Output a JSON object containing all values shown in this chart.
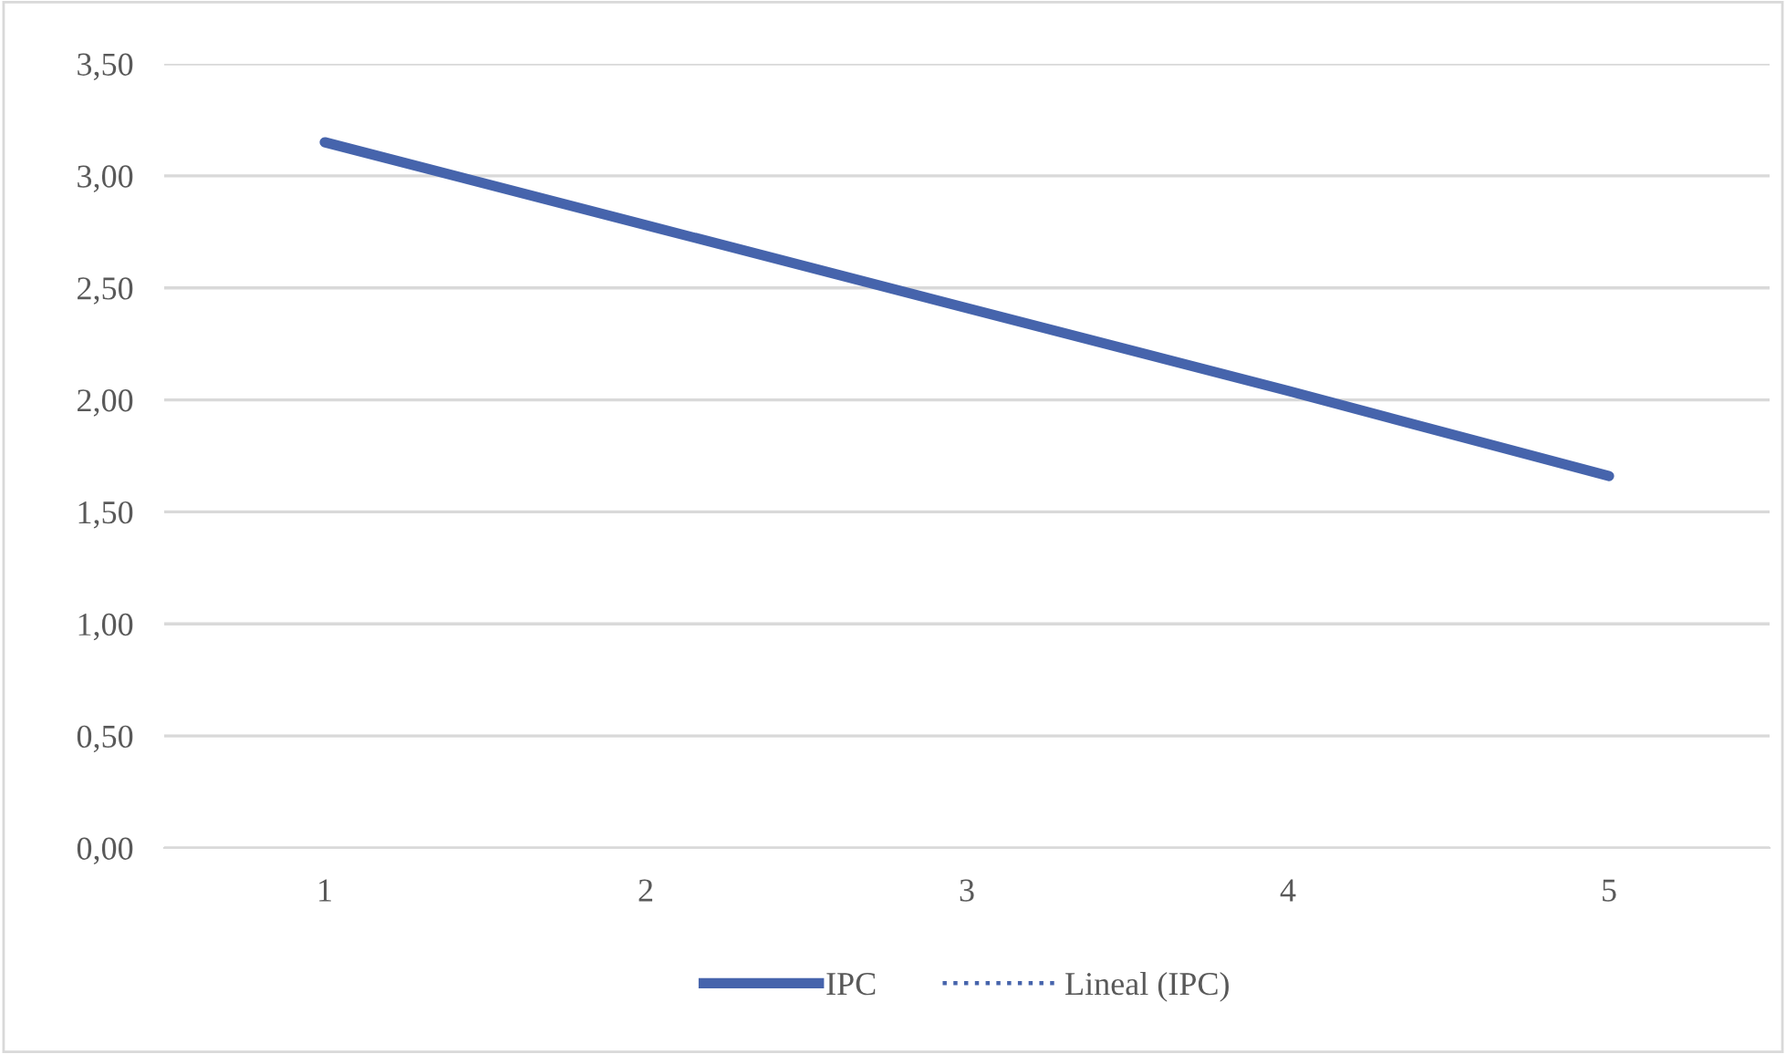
{
  "chart_data": {
    "type": "line",
    "categories": [
      "1",
      "2",
      "3",
      "4",
      "5"
    ],
    "series": [
      {
        "name": "IPC",
        "color": "#4664ac",
        "values": [
          3.15,
          2.78,
          2.41,
          2.04,
          1.66
        ],
        "line_style": "solid"
      },
      {
        "name": "Lineal (IPC)",
        "color": "#4664ac",
        "values": [
          null,
          null,
          null,
          null,
          null
        ],
        "line_style": "dotted"
      }
    ],
    "ylim": [
      0,
      3.5
    ],
    "yticks": [
      {
        "value": 0,
        "label": "0,00"
      },
      {
        "value": 0.5,
        "label": "0,50"
      },
      {
        "value": 1,
        "label": "1,00"
      },
      {
        "value": 1.5,
        "label": "1,50"
      },
      {
        "value": 2,
        "label": "2,00"
      },
      {
        "value": 2.5,
        "label": "2,50"
      },
      {
        "value": 3,
        "label": "3,00"
      },
      {
        "value": 3.5,
        "label": "3,50"
      }
    ],
    "grid": "y",
    "legend": "bottom",
    "marker": "none"
  }
}
